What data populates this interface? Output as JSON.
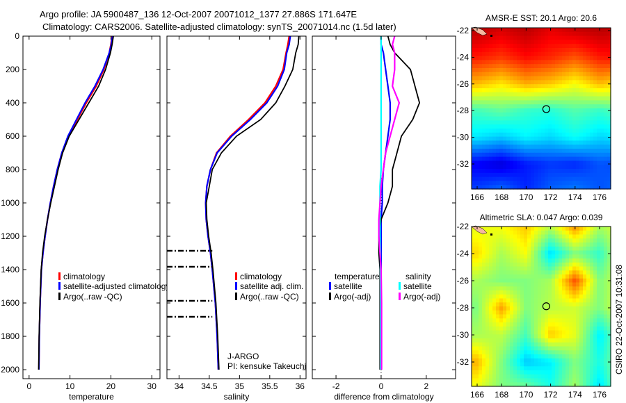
{
  "header": {
    "line1": "Argo profile: JA 5900487_136 12-Oct-2007 20071012_1377 27.886S 171.647E",
    "line2": "Climatology: CARS2006. Satellite-adjusted climatology: synTS_20071014.nc (1.5d later)"
  },
  "credit": "CSIRO 22-Oct-2007 10:31:08",
  "colors": {
    "climatology": "#ff0000",
    "satellite": "#0000ff",
    "argo": "#000000",
    "sal_satellite": "#00ffff",
    "sal_argo": "#ff00ff"
  },
  "chart_data": [
    {
      "type": "line",
      "id": "temperature",
      "xlabel": "temperature",
      "ylabel": "",
      "xlim": [
        -1.5,
        32
      ],
      "ylim": [
        2054,
        0
      ],
      "xticks": [
        "0",
        "10",
        "20",
        "30"
      ],
      "xtick_values": [
        0,
        10,
        20,
        30
      ],
      "yticks": [
        "0",
        "200",
        "400",
        "600",
        "800",
        "1000",
        "1200",
        "1400",
        "1600",
        "1800",
        "2000"
      ],
      "ytick_values": [
        0,
        200,
        400,
        600,
        800,
        1000,
        1200,
        1400,
        1600,
        1800,
        2000
      ],
      "depth": [
        0,
        50,
        100,
        200,
        300,
        400,
        500,
        600,
        700,
        800,
        900,
        1000,
        1100,
        1200,
        1300,
        1400,
        1600,
        1800,
        2000
      ],
      "series": [
        {
          "name": "climatology",
          "color": "#ff0000",
          "values": [
            20.3,
            20.0,
            19.6,
            18.3,
            16.4,
            14.0,
            11.8,
            9.6,
            8.0,
            6.9,
            6.0,
            5.2,
            4.5,
            3.9,
            3.4,
            3.0,
            2.7,
            2.5,
            2.4
          ]
        },
        {
          "name": "satellite-adjusted climatology",
          "color": "#0000ff",
          "values": [
            20.4,
            20.1,
            19.6,
            18.1,
            16.1,
            13.7,
            11.6,
            9.5,
            8.0,
            6.9,
            6.0,
            5.2,
            4.5,
            3.9,
            3.4,
            3.0,
            2.7,
            2.5,
            2.4
          ]
        },
        {
          "name": "Argo(..raw -QC)",
          "color": "#000000",
          "values": [
            20.6,
            20.3,
            19.9,
            18.7,
            17.0,
            14.6,
            12.2,
            9.8,
            8.2,
            7.1,
            6.2,
            5.3,
            4.5,
            3.8,
            3.3,
            2.95,
            2.65,
            2.45,
            2.35
          ]
        }
      ],
      "legend": [
        "climatology",
        "satellite-adjusted climatology",
        "Argo(..raw -QC)"
      ]
    },
    {
      "type": "line",
      "id": "salinity",
      "xlabel": "salinity",
      "xlim": [
        33.8,
        36.1
      ],
      "ylim": [
        2054,
        0
      ],
      "xticks": [
        "34",
        "34.5",
        "35",
        "35.5",
        "36"
      ],
      "xtick_values": [
        34,
        34.5,
        35,
        35.5,
        36
      ],
      "depth": [
        0,
        50,
        100,
        200,
        300,
        400,
        500,
        600,
        700,
        800,
        900,
        1000,
        1100,
        1200,
        1300,
        1400,
        1600,
        1800,
        2000
      ],
      "series": [
        {
          "name": "climatology",
          "color": "#ff0000",
          "values": [
            35.82,
            35.8,
            35.77,
            35.72,
            35.6,
            35.42,
            35.15,
            34.85,
            34.62,
            34.52,
            34.46,
            34.44,
            34.45,
            34.48,
            34.52,
            34.55,
            34.6,
            34.63,
            34.65
          ]
        },
        {
          "name": "satellite adj. clim.",
          "color": "#0000ff",
          "values": [
            35.84,
            35.82,
            35.78,
            35.74,
            35.63,
            35.45,
            35.18,
            34.87,
            34.63,
            34.52,
            34.46,
            34.44,
            34.45,
            34.48,
            34.52,
            34.55,
            34.6,
            34.63,
            34.65
          ]
        },
        {
          "name": "Argo(..raw -QC)",
          "color": "#000000",
          "values": [
            35.98,
            35.97,
            35.93,
            35.88,
            35.75,
            35.6,
            35.35,
            34.95,
            34.7,
            34.55,
            34.5,
            34.45,
            34.46,
            34.49,
            34.53,
            34.56,
            34.61,
            34.64,
            34.66
          ]
        }
      ],
      "flagged_depths": [
        1287,
        1383,
        1587,
        1683
      ],
      "legend": [
        "climatology",
        "satellite adj. clim.",
        "Argo(..raw -QC)"
      ],
      "annotation": [
        "J-ARGO",
        "PI: kensuke Takeuchi"
      ]
    },
    {
      "type": "line",
      "id": "difference",
      "xlabel": "difference from climatology",
      "xlim": [
        -3.05,
        3.3
      ],
      "ylim": [
        2054,
        0
      ],
      "xticks": [
        "-2",
        "0",
        "2"
      ],
      "xtick_values": [
        -2,
        0,
        2
      ],
      "depth": [
        0,
        50,
        100,
        200,
        300,
        400,
        500,
        600,
        700,
        800,
        900,
        1000,
        1100,
        1200,
        1300,
        1400,
        1600,
        1800,
        2000
      ],
      "series": [
        {
          "name": "temperature satellite",
          "color": "#0000ff",
          "values": [
            0,
            0,
            0.1,
            0.2,
            0.3,
            0.4,
            0.4,
            0.3,
            0.2,
            0.1,
            0.05,
            0.05,
            0,
            0,
            0,
            0,
            0,
            0,
            0
          ]
        },
        {
          "name": "temperature Argo(-adj)",
          "color": "#000000",
          "values": [
            0.3,
            0.4,
            0.6,
            1.3,
            1.5,
            1.7,
            1.4,
            0.9,
            0.7,
            0.5,
            0.5,
            0.3,
            0.0,
            -0.1,
            -0.1,
            -0.05,
            -0.05,
            -0.05,
            -0.05
          ]
        },
        {
          "name": "salinity satellite",
          "color": "#00ffff",
          "values": [
            0,
            0,
            0,
            0,
            0,
            0,
            0,
            0,
            0,
            0,
            -0.05,
            -0.05,
            -0.05,
            -0.05,
            -0.03,
            -0.03,
            -0.02,
            -0.02,
            -0.02
          ]
        },
        {
          "name": "salinity Argo(-adj)",
          "color": "#ff00ff",
          "values": [
            0.6,
            0.5,
            0.6,
            0.6,
            0.5,
            0.8,
            0.6,
            0.4,
            0.2,
            0.1,
            0,
            -0.05,
            -0.1,
            -0.1,
            -0.05,
            0,
            0.02,
            0.02,
            0.02
          ]
        }
      ],
      "legend": {
        "temperature_title": "temperature",
        "temperature_satellite": "satellite",
        "temperature_argo": "Argo(-adj)",
        "salinity_title": "salinity",
        "salinity_satellite": "satellite",
        "salinity_argo": "Argo(-adj)"
      }
    },
    {
      "type": "heatmap",
      "id": "sst_map",
      "title": "AMSR-E SST: 20.1  Argo: 20.6",
      "lon": [
        166,
        168,
        170,
        172,
        174,
        176,
        178
      ],
      "lat": [
        -22,
        -24,
        -26,
        -28,
        -30,
        -32,
        -34
      ],
      "values": [
        [
          24.0,
          23.8,
          24.0,
          23.7,
          23.9,
          24.0,
          23.9
        ],
        [
          23.4,
          23.2,
          23.5,
          23.3,
          23.0,
          23.4,
          23.5
        ],
        [
          22.3,
          22.0,
          22.4,
          22.2,
          21.8,
          22.3,
          22.0
        ],
        [
          20.6,
          20.8,
          20.5,
          20.4,
          20.7,
          20.5,
          20.8
        ],
        [
          20.0,
          19.8,
          20.1,
          19.9,
          20.2,
          19.9,
          20.0
        ],
        [
          18.4,
          18.2,
          18.6,
          18.8,
          18.7,
          19.0,
          18.9
        ],
        [
          18.9,
          19.2,
          18.7,
          19.1,
          19.3,
          19.0,
          19.2
        ]
      ],
      "clim": [
        17.6,
        24.4
      ],
      "xticks": [
        "166",
        "168",
        "170",
        "172",
        "174",
        "176"
      ],
      "yticks": [
        "-22",
        "-24",
        "-26",
        "-28",
        "-30",
        "-32"
      ],
      "marker": {
        "lon": 171.647,
        "lat": -27.886
      }
    },
    {
      "type": "heatmap",
      "id": "sla_map",
      "title": "Altimetric SLA: 0.047  Argo: 0.039",
      "lon": [
        166,
        168,
        170,
        172,
        174,
        176,
        178
      ],
      "lat": [
        -22,
        -24,
        -26,
        -28,
        -30,
        -32,
        -34
      ],
      "values": [
        [
          0.05,
          0.06,
          0.09,
          0.03,
          0.12,
          0.02,
          0.05
        ],
        [
          0.08,
          0.02,
          0.06,
          -0.08,
          0.0,
          -0.04,
          0.06
        ],
        [
          0.02,
          0.0,
          0.0,
          0.02,
          0.15,
          0.0,
          0.05
        ],
        [
          0.0,
          0.11,
          0.0,
          0.03,
          0.04,
          0.0,
          0.06
        ],
        [
          0.02,
          0.03,
          -0.03,
          0.09,
          0.05,
          -0.07,
          0.02
        ],
        [
          0.1,
          0.0,
          -0.09,
          -0.07,
          0.0,
          -0.05,
          0.02
        ],
        [
          0.05,
          0.0,
          0.0,
          -0.05,
          0.02,
          -0.08,
          0.03
        ]
      ],
      "clim": [
        -0.25,
        0.25
      ],
      "xticks": [
        "166",
        "168",
        "170",
        "172",
        "174",
        "176"
      ],
      "yticks": [
        "-22",
        "-24",
        "-26",
        "-28",
        "-30",
        "-32"
      ],
      "marker": {
        "lon": 171.647,
        "lat": -27.886
      }
    }
  ]
}
